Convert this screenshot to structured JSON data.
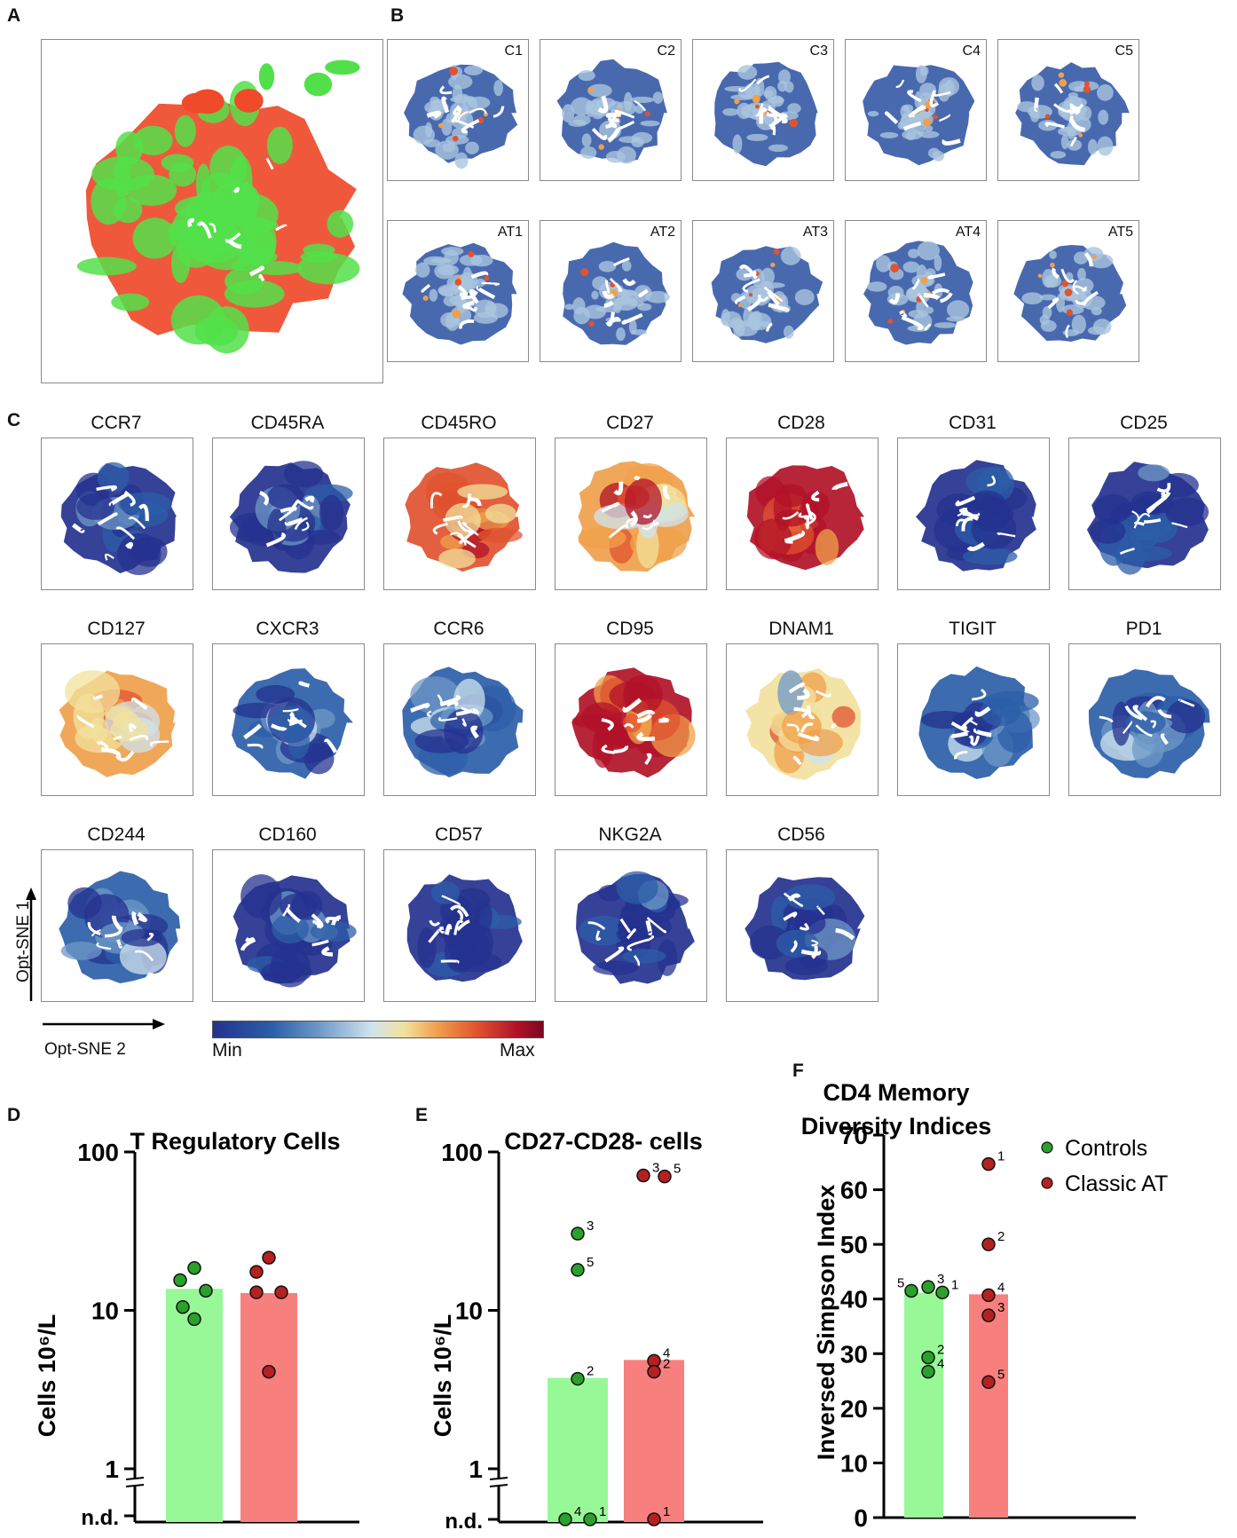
{
  "panels": {
    "A": {
      "letter": "A"
    },
    "B": {
      "letter": "B",
      "samples": [
        "C1",
        "C2",
        "C3",
        "C4",
        "C5",
        "AT1",
        "AT2",
        "AT3",
        "AT4",
        "AT5"
      ]
    },
    "C": {
      "letter": "C",
      "markers": [
        "CCR7",
        "CD45RA",
        "CD45RO",
        "CD27",
        "CD28",
        "CD31",
        "CD25",
        "CD127",
        "CXCR3",
        "CCR6",
        "CD95",
        "DNAM1",
        "TIGIT",
        "PD1",
        "CD244",
        "CD160",
        "CD57",
        "NKG2A",
        "CD56"
      ],
      "axis_y": "Opt-SNE 1",
      "axis_x": "Opt-SNE 2",
      "colorbar_min": "Min",
      "colorbar_max": "Max"
    },
    "D": {
      "letter": "D"
    },
    "E": {
      "letter": "E"
    },
    "F": {
      "letter": "F"
    }
  },
  "colors": {
    "controls": "#2aa12a",
    "classic_at": "#b52020",
    "controls_bar": "#98f898",
    "at_bar": "#f7807f",
    "scatter_green": "#52e04a",
    "scatter_red": "#ef4a2a"
  },
  "legend": {
    "controls": "Controls",
    "classic_at": "Classic AT"
  },
  "chart_data": [
    {
      "id": "D",
      "type": "bar",
      "title": "T Regulatory Cells",
      "ylabel": "Cells 10⁶/L",
      "yscale": "log",
      "ylim": [
        1,
        100
      ],
      "yticks": [
        "1",
        "10",
        "100"
      ],
      "nd_label": "n.d.",
      "categories": [
        "Controls",
        "Classic AT"
      ],
      "values": [
        13.5,
        12.7
      ],
      "points": [
        [
          18.5,
          15.5,
          13.3,
          10.5,
          8.8
        ],
        [
          21.5,
          17.5,
          13.0,
          13.0,
          4.1
        ]
      ]
    },
    {
      "id": "E",
      "type": "bar",
      "title": "CD27-CD28- cells",
      "ylabel": "Cells 10⁶/L",
      "yscale": "log",
      "ylim": [
        1,
        100
      ],
      "yticks": [
        "1",
        "10",
        "100"
      ],
      "nd_label": "n.d.",
      "categories": [
        "Controls",
        "Classic AT"
      ],
      "values": [
        3.7,
        4.8
      ],
      "points": [
        [
          {
            "label": "3",
            "value": 30.5
          },
          {
            "label": "5",
            "value": 18.0
          },
          {
            "label": "2",
            "value": 3.7
          },
          {
            "label": "4",
            "value": "n.d."
          },
          {
            "label": "1",
            "value": "n.d."
          }
        ],
        [
          {
            "label": "3",
            "value": 71
          },
          {
            "label": "5",
            "value": 70
          },
          {
            "label": "4",
            "value": 4.8
          },
          {
            "label": "2",
            "value": 4.1
          },
          {
            "label": "1",
            "value": "n.d."
          }
        ]
      ]
    },
    {
      "id": "F",
      "type": "bar",
      "title": "CD4 Memory Diversity Indices",
      "title_lines": [
        "CD4 Memory",
        "Diversity Indices"
      ],
      "ylabel": "Inversed Simpson Index",
      "yscale": "linear",
      "ylim": [
        0,
        70
      ],
      "yticks": [
        "0",
        "10",
        "20",
        "30",
        "40",
        "50",
        "60",
        "70"
      ],
      "categories": [
        "Controls",
        "Classic AT"
      ],
      "values": [
        41.0,
        40.7
      ],
      "points": [
        [
          {
            "label": "5",
            "value": 41.5
          },
          {
            "label": "3",
            "value": 42.2
          },
          {
            "label": "1",
            "value": 41.2
          },
          {
            "label": "2",
            "value": 29.3
          },
          {
            "label": "4",
            "value": 26.7
          }
        ],
        [
          {
            "label": "1",
            "value": 64.7
          },
          {
            "label": "2",
            "value": 50.0
          },
          {
            "label": "4",
            "value": 40.7
          },
          {
            "label": "3",
            "value": 37.0
          },
          {
            "label": "5",
            "value": 24.8
          }
        ]
      ]
    }
  ]
}
